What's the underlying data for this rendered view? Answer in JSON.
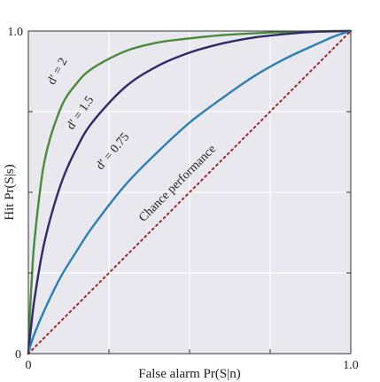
{
  "chart_data": {
    "type": "line",
    "xlabel": "False alarm Pr(S|n)",
    "ylabel": "Hit Pr(S|s)",
    "xlim": [
      0,
      1
    ],
    "ylim": [
      0,
      1
    ],
    "x_tick_labels": [
      "0",
      "1.0"
    ],
    "y_tick_labels": [
      "0",
      "1.0"
    ],
    "grid": true,
    "background_color": "#e8e8ee",
    "series": [
      {
        "name": "d′ = 2",
        "color": "#4b8a3b",
        "style": "solid",
        "x": [
          0,
          0.005,
          0.01,
          0.02,
          0.05,
          0.1,
          0.15,
          0.2,
          0.3,
          0.4,
          0.5,
          0.6,
          0.7,
          0.8,
          0.9,
          0.95,
          1.0
        ],
        "y": [
          0,
          0.127,
          0.22,
          0.361,
          0.596,
          0.76,
          0.838,
          0.885,
          0.937,
          0.964,
          0.977,
          0.987,
          0.993,
          0.997,
          0.999,
          1.0,
          1.0
        ]
      },
      {
        "name": "d′ = 1.5",
        "color": "#2e2a6a",
        "style": "solid",
        "x": [
          0,
          0.005,
          0.01,
          0.02,
          0.05,
          0.1,
          0.15,
          0.2,
          0.3,
          0.4,
          0.5,
          0.6,
          0.7,
          0.8,
          0.9,
          0.95,
          1.0
        ],
        "y": [
          0,
          0.052,
          0.096,
          0.176,
          0.346,
          0.523,
          0.637,
          0.719,
          0.826,
          0.891,
          0.933,
          0.961,
          0.98,
          0.991,
          0.998,
          0.999,
          1.0
        ]
      },
      {
        "name": "d′ = 0.75",
        "color": "#2a7fb4",
        "style": "solid",
        "x": [
          0,
          0.005,
          0.01,
          0.02,
          0.05,
          0.1,
          0.15,
          0.2,
          0.3,
          0.4,
          0.5,
          0.6,
          0.7,
          0.8,
          0.9,
          0.95,
          1.0
        ],
        "y": [
          0,
          0.02,
          0.036,
          0.064,
          0.135,
          0.237,
          0.318,
          0.394,
          0.522,
          0.624,
          0.716,
          0.791,
          0.86,
          0.916,
          0.962,
          0.984,
          1.0
        ]
      },
      {
        "name": "Chance performance",
        "color": "#a02828",
        "style": "dotted",
        "x": [
          0,
          1
        ],
        "y": [
          0,
          1
        ]
      }
    ],
    "annotations": [
      {
        "text": "d′ = 2",
        "x": 0.1,
        "y": 0.87,
        "angle": -62
      },
      {
        "text": "d′ = 1.5",
        "x": 0.17,
        "y": 0.74,
        "angle": -55
      },
      {
        "text": "d′ = 0.75",
        "x": 0.27,
        "y": 0.62,
        "angle": -50
      },
      {
        "text": "Chance performance",
        "x": 0.47,
        "y": 0.52,
        "angle": -45
      }
    ]
  }
}
